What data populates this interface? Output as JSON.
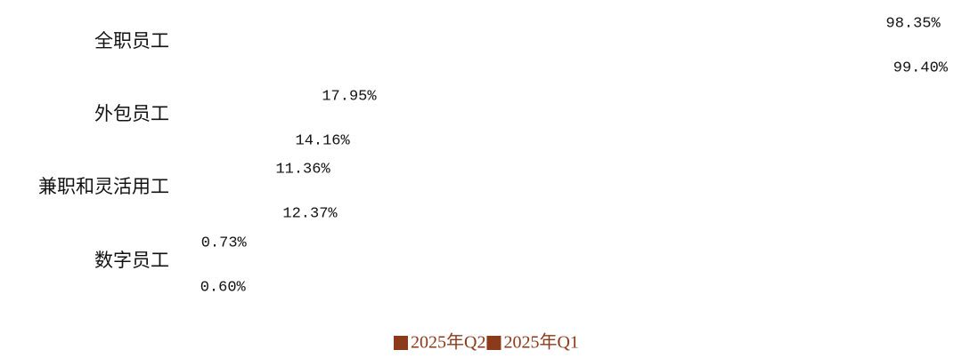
{
  "chart_data": {
    "type": "hbar",
    "categories": [
      "全职员工",
      "外包员工",
      "兼职和灵活用工",
      "数字员工"
    ],
    "series": [
      {
        "name": "2025年Q2",
        "color": "#8b3a1a",
        "values": [
          98.35,
          17.95,
          11.36,
          0.73
        ],
        "value_labels": [
          "98.35%",
          "17.95%",
          "11.36%",
          "0.73%"
        ]
      },
      {
        "name": "2025年Q1",
        "color": "#8b3a1a",
        "values": [
          99.4,
          14.16,
          12.37,
          0.6
        ],
        "value_labels": [
          "99.40%",
          "14.16%",
          "12.37%",
          "0.60%"
        ]
      }
    ],
    "xlim": [
      0,
      100
    ],
    "legend": "bottom"
  }
}
